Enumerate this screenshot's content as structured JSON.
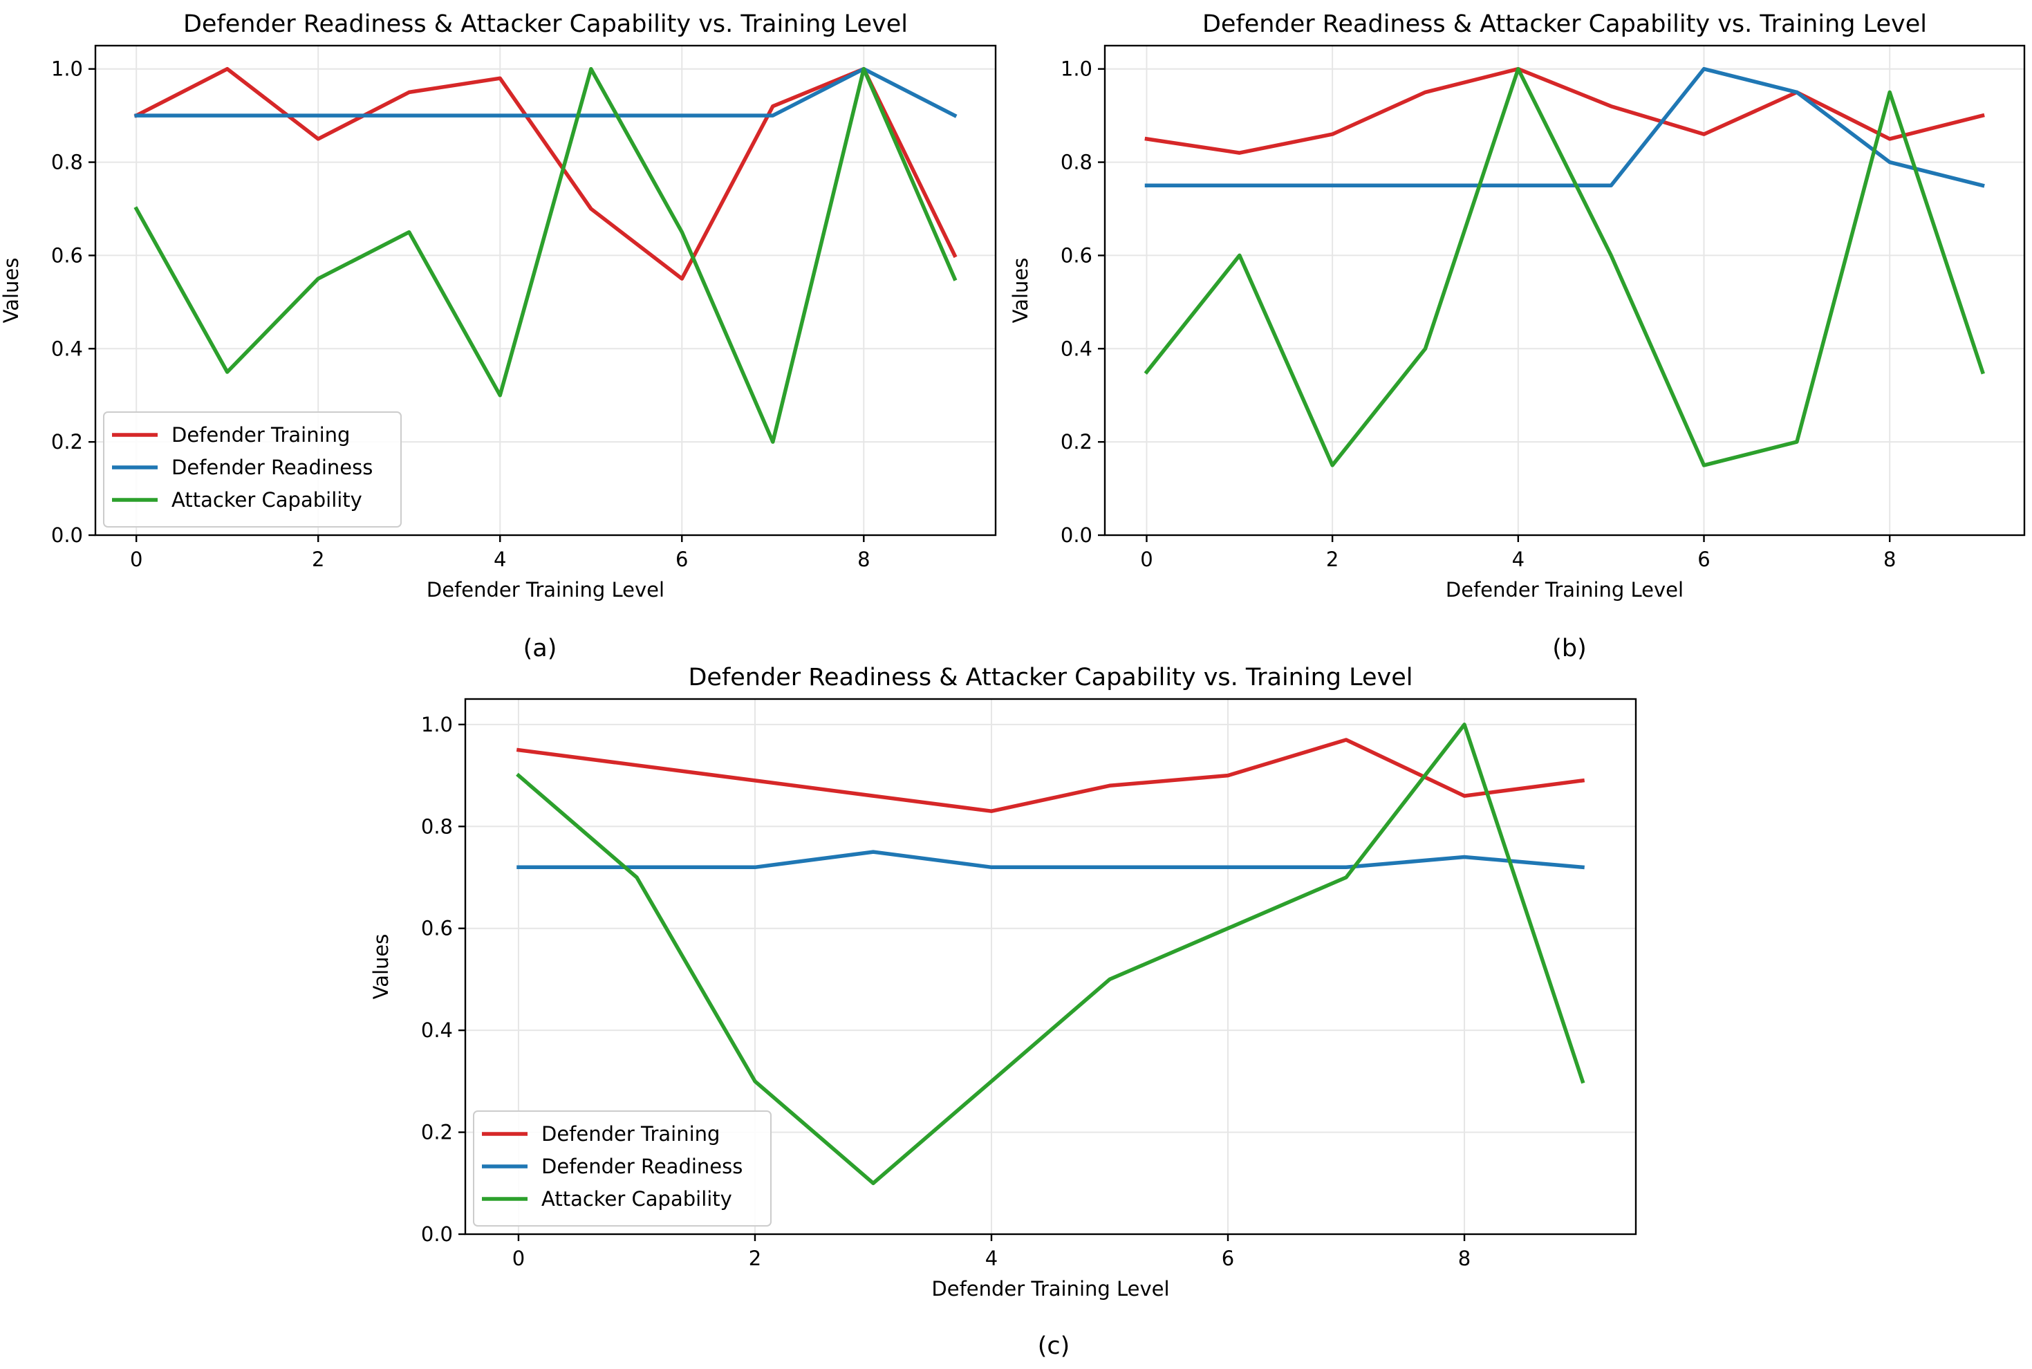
{
  "colors": {
    "defender_training": "#d62728",
    "defender_readiness": "#1f77b4",
    "attacker_capability": "#2ca02c",
    "grid": "#e6e6e6",
    "axes": "#000000"
  },
  "chart_data": [
    {
      "type": "line",
      "title": "Defender Readiness & Attacker Capability vs. Training Level",
      "xlabel": "Defender Training Level",
      "ylabel": "Values",
      "caption": "(a)",
      "xlim": [
        -0.45,
        9.45
      ],
      "ylim": [
        0,
        1.05
      ],
      "xticks": [
        "0",
        "2",
        "4",
        "6",
        "8"
      ],
      "yticks": [
        "0.0",
        "0.2",
        "0.4",
        "0.6",
        "0.8",
        "1.0"
      ],
      "grid": true,
      "legend_position": "lower-left",
      "x": [
        0,
        1,
        2,
        3,
        4,
        5,
        6,
        7,
        8,
        9
      ],
      "series": [
        {
          "name": "Defender Training",
          "color_key": "defender_training",
          "values": [
            0.9,
            1.0,
            0.85,
            0.95,
            0.98,
            0.7,
            0.55,
            0.92,
            1.0,
            0.6
          ]
        },
        {
          "name": "Defender Readiness",
          "color_key": "defender_readiness",
          "values": [
            0.9,
            0.9,
            0.9,
            0.9,
            0.9,
            0.9,
            0.9,
            0.9,
            1.0,
            0.9
          ]
        },
        {
          "name": "Attacker Capability",
          "color_key": "attacker_capability",
          "values": [
            0.7,
            0.35,
            0.55,
            0.65,
            0.3,
            1.0,
            0.65,
            0.2,
            1.0,
            0.55
          ]
        }
      ]
    },
    {
      "type": "line",
      "title": "Defender Readiness & Attacker Capability vs. Training Level",
      "xlabel": "Defender Training Level",
      "ylabel": "Values",
      "caption": "(b)",
      "xlim": [
        -0.45,
        9.45
      ],
      "ylim": [
        0,
        1.05
      ],
      "xticks": [
        "0",
        "2",
        "4",
        "6",
        "8"
      ],
      "yticks": [
        "0.0",
        "0.2",
        "0.4",
        "0.6",
        "0.8",
        "1.0"
      ],
      "grid": true,
      "legend_position": "none",
      "x": [
        0,
        1,
        2,
        3,
        4,
        5,
        6,
        7,
        8,
        9
      ],
      "series": [
        {
          "name": "Defender Training",
          "color_key": "defender_training",
          "values": [
            0.85,
            0.82,
            0.86,
            0.95,
            1.0,
            0.92,
            0.86,
            0.95,
            0.85,
            0.9
          ]
        },
        {
          "name": "Defender Readiness",
          "color_key": "defender_readiness",
          "values": [
            0.75,
            0.75,
            0.75,
            0.75,
            0.75,
            0.75,
            1.0,
            0.95,
            0.8,
            0.75
          ]
        },
        {
          "name": "Attacker Capability",
          "color_key": "attacker_capability",
          "values": [
            0.35,
            0.6,
            0.15,
            0.4,
            1.0,
            0.6,
            0.15,
            0.2,
            0.95,
            0.35
          ]
        }
      ]
    },
    {
      "type": "line",
      "title": "Defender Readiness & Attacker Capability vs. Training Level",
      "xlabel": "Defender Training Level",
      "ylabel": "Values",
      "caption": "(c)",
      "xlim": [
        -0.45,
        9.45
      ],
      "ylim": [
        0,
        1.05
      ],
      "xticks": [
        "0",
        "2",
        "4",
        "6",
        "8"
      ],
      "yticks": [
        "0.0",
        "0.2",
        "0.4",
        "0.6",
        "0.8",
        "1.0"
      ],
      "grid": true,
      "legend_position": "lower-left",
      "x": [
        0,
        1,
        2,
        3,
        4,
        5,
        6,
        7,
        8,
        9
      ],
      "series": [
        {
          "name": "Defender Training",
          "color_key": "defender_training",
          "values": [
            0.95,
            0.92,
            0.89,
            0.86,
            0.83,
            0.88,
            0.9,
            0.97,
            0.86,
            0.89
          ]
        },
        {
          "name": "Defender Readiness",
          "color_key": "defender_readiness",
          "values": [
            0.72,
            0.72,
            0.72,
            0.75,
            0.72,
            0.72,
            0.72,
            0.72,
            0.74,
            0.72
          ]
        },
        {
          "name": "Attacker Capability",
          "color_key": "attacker_capability",
          "values": [
            0.9,
            0.7,
            0.3,
            0.1,
            0.3,
            0.5,
            0.6,
            0.7,
            1.0,
            0.3
          ]
        }
      ]
    }
  ]
}
